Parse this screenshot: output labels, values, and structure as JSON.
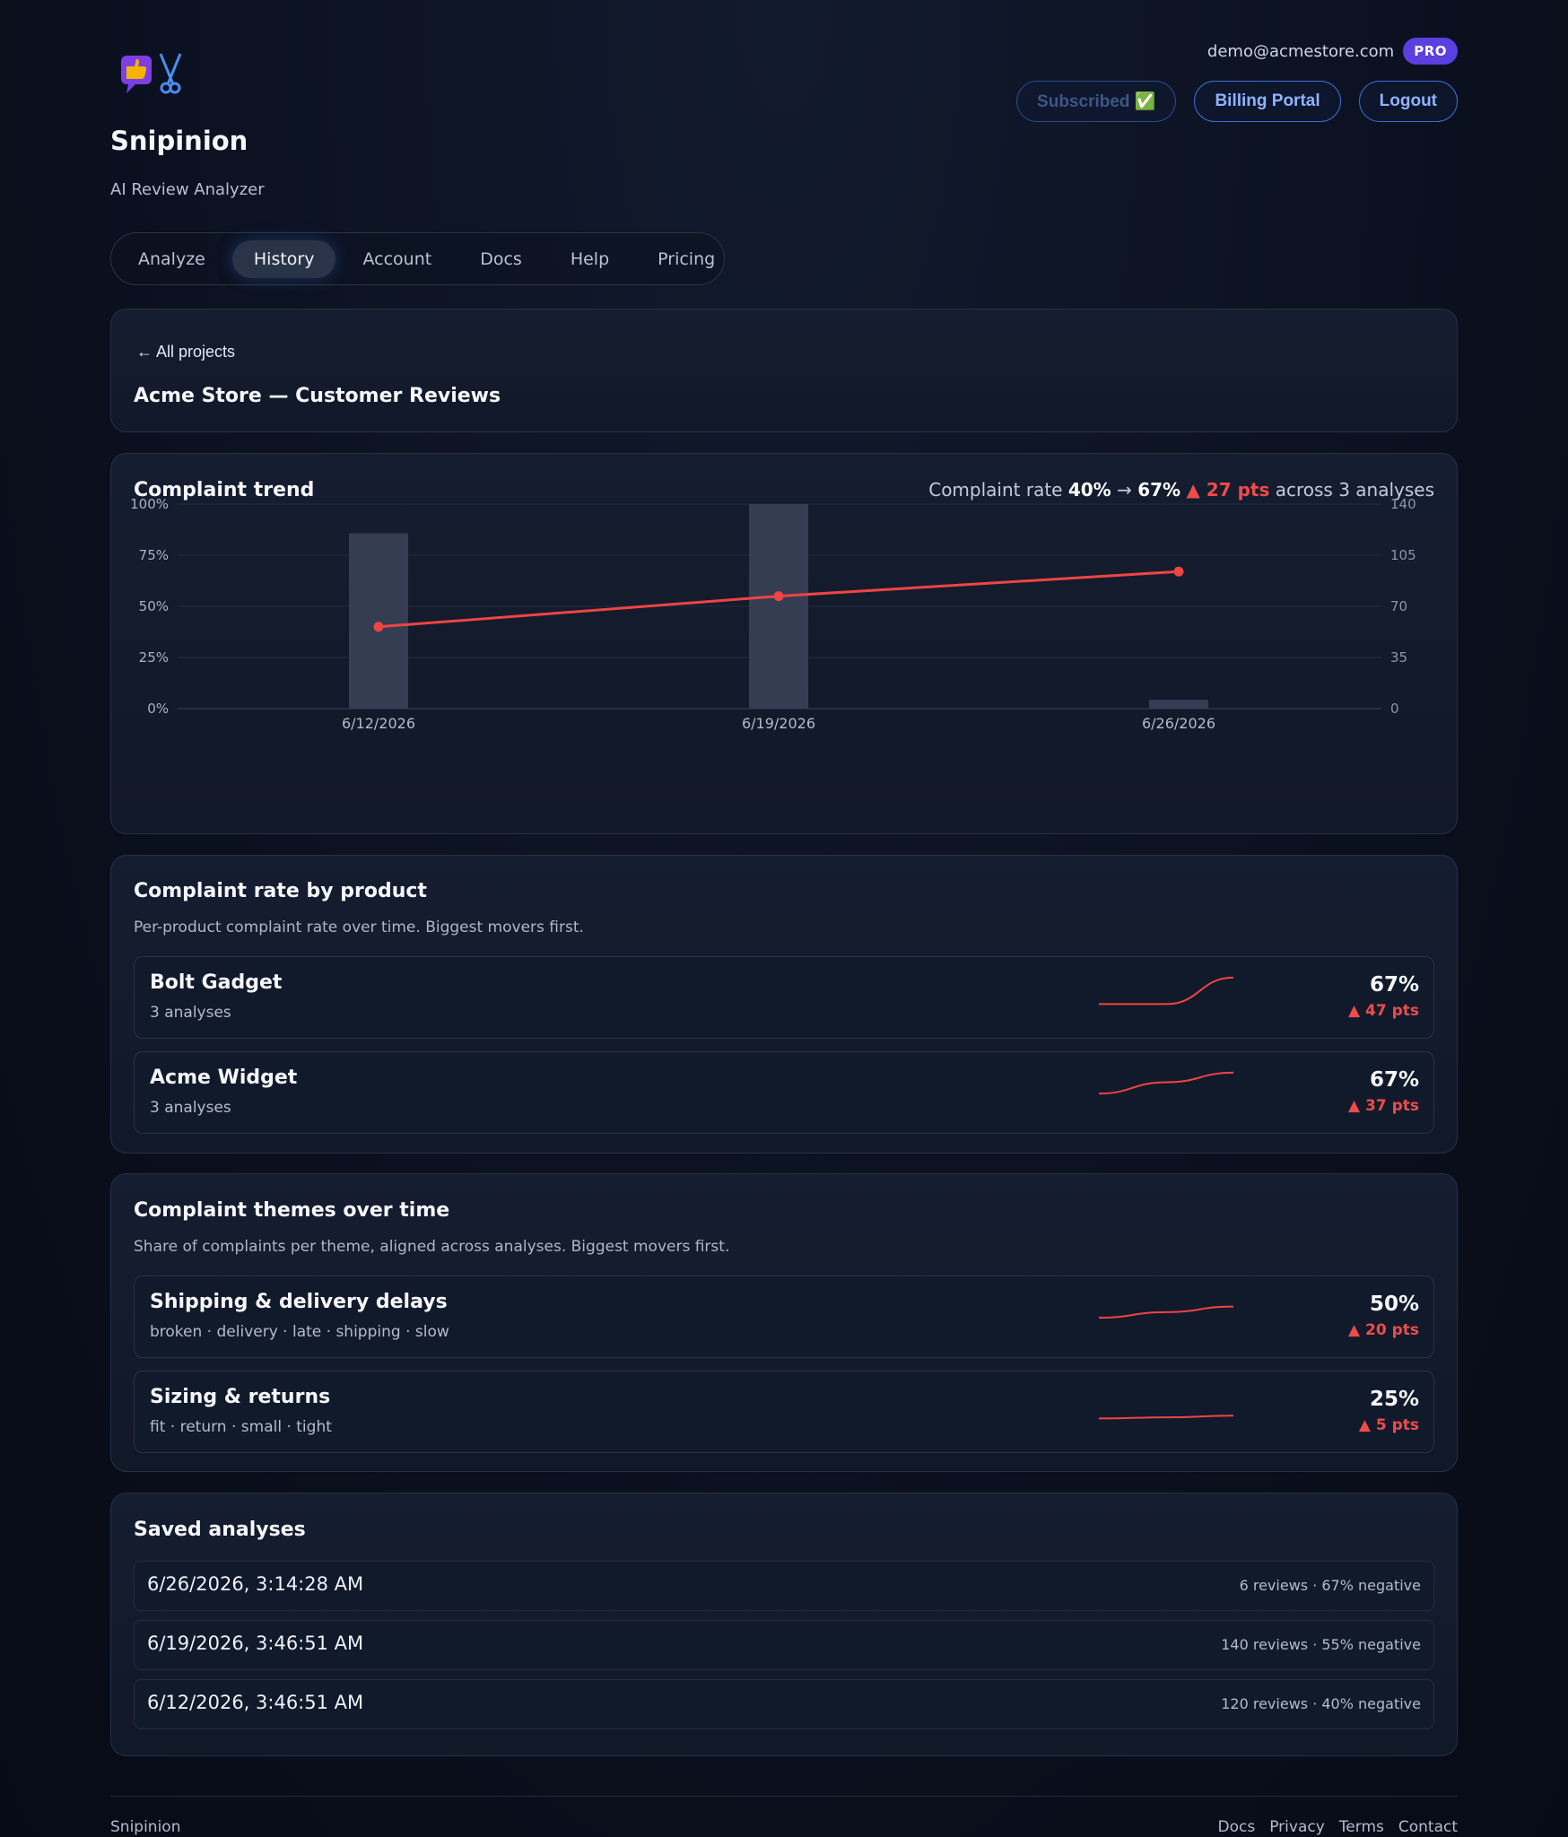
{
  "app": {
    "name": "Snipinion",
    "tagline": "AI Review Analyzer"
  },
  "user": {
    "email": "demo@acmestore.com",
    "plan_badge": "PRO"
  },
  "header_actions": {
    "subscribed": "Subscribed ✅",
    "billing": "Billing Portal",
    "logout": "Logout"
  },
  "tabs": [
    {
      "label": "Analyze",
      "active": false
    },
    {
      "label": "History",
      "active": true
    },
    {
      "label": "Account",
      "active": false
    },
    {
      "label": "Docs",
      "active": false
    },
    {
      "label": "Help",
      "active": false
    },
    {
      "label": "Pricing",
      "active": false
    }
  ],
  "project": {
    "back": "← All projects",
    "title": "Acme Store — Customer Reviews"
  },
  "trend": {
    "title": "Complaint trend",
    "summary_prefix": "Complaint rate",
    "rate_from": "40%",
    "arrow": "→",
    "rate_to": "67%",
    "change": "▲ 27 pts",
    "summary_suffix": "across 3 analyses"
  },
  "chart_data": {
    "type": "bar+line",
    "categories": [
      "6/12/2026",
      "6/19/2026",
      "6/26/2026"
    ],
    "series": [
      {
        "kind": "bar",
        "axis": "right",
        "values": [
          120,
          140,
          6
        ]
      },
      {
        "kind": "line",
        "axis": "left",
        "values": [
          40,
          55,
          67
        ]
      }
    ],
    "left_axis": {
      "ticks": [
        "100%",
        "75%",
        "50%",
        "25%",
        "0%"
      ],
      "range": [
        0,
        100
      ]
    },
    "right_axis": {
      "ticks": [
        "140",
        "105",
        "70",
        "35",
        "0"
      ],
      "range": [
        0,
        140
      ]
    },
    "colors": {
      "bar": "#343d52",
      "line": "#ef4444"
    },
    "grid": true
  },
  "by_product": {
    "title": "Complaint rate by product",
    "desc": "Per-product complaint rate over time. Biggest movers first.",
    "items": [
      {
        "name": "Bolt Gadget",
        "sub": "3 analyses",
        "pct": "67%",
        "delta": "▲ 47 pts",
        "trend": [
          20,
          20,
          67
        ]
      },
      {
        "name": "Acme Widget",
        "sub": "3 analyses",
        "pct": "67%",
        "delta": "▲ 37 pts",
        "trend": [
          30,
          50,
          67
        ]
      }
    ]
  },
  "themes": {
    "title": "Complaint themes over time",
    "desc": "Share of complaints per theme, aligned across analyses. Biggest movers first.",
    "items": [
      {
        "name": "Shipping & delivery delays",
        "sub": "broken · delivery · late · shipping · slow",
        "pct": "50%",
        "delta": "▲ 20 pts",
        "trend": [
          30,
          40,
          50
        ]
      },
      {
        "name": "Sizing & returns",
        "sub": "fit · return · small · tight",
        "pct": "25%",
        "delta": "▲ 5 pts",
        "trend": [
          20,
          22,
          25
        ]
      }
    ]
  },
  "saved": {
    "title": "Saved analyses",
    "items": [
      {
        "date": "6/26/2026, 3:14:28 AM",
        "meta": "6 reviews · 67% negative"
      },
      {
        "date": "6/19/2026, 3:46:51 AM",
        "meta": "140 reviews · 55% negative"
      },
      {
        "date": "6/12/2026, 3:46:51 AM",
        "meta": "120 reviews · 40% negative"
      }
    ]
  },
  "footer": {
    "brand": "Snipinion",
    "links": [
      "Docs",
      "Privacy",
      "Terms",
      "Contact"
    ]
  }
}
